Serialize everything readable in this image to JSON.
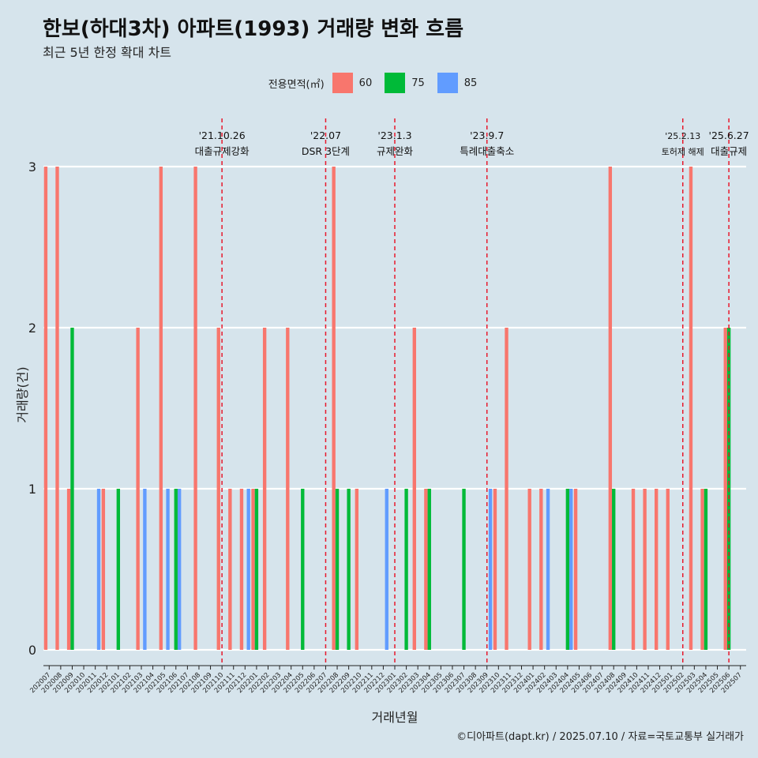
{
  "title": "한보(하대3차) 아파트(1993) 거래량 변화 흐름",
  "subtitle": "최근 5년 한정 확대 차트",
  "caption": "©디아파트(dapt.kr) / 2025.07.10 / 자료=국토교통부 실거래가",
  "legend": {
    "title": "전용면적(㎡)",
    "items": [
      {
        "label": "60",
        "color": "#f8766d"
      },
      {
        "label": "75",
        "color": "#00ba38"
      },
      {
        "label": "85",
        "color": "#619cff"
      }
    ]
  },
  "chart_data": {
    "type": "bar",
    "xlabel": "거래년월",
    "ylabel": "거래량(건)",
    "ylim": [
      0,
      3
    ],
    "yticks": [
      0,
      1,
      2,
      3
    ],
    "grid": true,
    "categories": [
      "202007",
      "202008",
      "202009",
      "202010",
      "202011",
      "202012",
      "202101",
      "202102",
      "202103",
      "202104",
      "202105",
      "202106",
      "202107",
      "202108",
      "202109",
      "202110",
      "202111",
      "202112",
      "202201",
      "202202",
      "202203",
      "202204",
      "202205",
      "202206",
      "202207",
      "202208",
      "202209",
      "202210",
      "202211",
      "202212",
      "202301",
      "202302",
      "202303",
      "202304",
      "202305",
      "202306",
      "202307",
      "202308",
      "202309",
      "202310",
      "202311",
      "202312",
      "202401",
      "202402",
      "202403",
      "202404",
      "202405",
      "202406",
      "202407",
      "202408",
      "202409",
      "202410",
      "202411",
      "202412",
      "202501",
      "202502",
      "202503",
      "202504",
      "202505",
      "202506",
      "202507"
    ],
    "series": [
      {
        "name": "60",
        "color": "#f8766d",
        "values": [
          3,
          3,
          1,
          0,
          0,
          1,
          0,
          0,
          2,
          0,
          3,
          0,
          0,
          3,
          0,
          2,
          1,
          1,
          1,
          2,
          0,
          2,
          0,
          0,
          0,
          3,
          0,
          1,
          0,
          0,
          0,
          0,
          2,
          1,
          0,
          0,
          0,
          0,
          0,
          1,
          2,
          0,
          1,
          1,
          0,
          0,
          1,
          0,
          0,
          3,
          0,
          1,
          1,
          1,
          1,
          0,
          3,
          1,
          0,
          2,
          0
        ]
      },
      {
        "name": "75",
        "color": "#00ba38",
        "values": [
          0,
          0,
          2,
          0,
          0,
          0,
          1,
          0,
          0,
          0,
          0,
          1,
          0,
          0,
          0,
          0,
          0,
          0,
          1,
          0,
          0,
          0,
          1,
          0,
          0,
          1,
          1,
          0,
          0,
          0,
          0,
          1,
          0,
          1,
          0,
          0,
          1,
          0,
          0,
          0,
          0,
          0,
          0,
          0,
          0,
          1,
          0,
          0,
          0,
          1,
          0,
          0,
          0,
          0,
          0,
          0,
          0,
          1,
          0,
          2,
          0
        ]
      },
      {
        "name": "85",
        "color": "#619cff",
        "values": [
          0,
          0,
          0,
          0,
          1,
          0,
          0,
          0,
          1,
          0,
          1,
          1,
          0,
          0,
          0,
          0,
          0,
          1,
          0,
          0,
          0,
          0,
          0,
          0,
          0,
          0,
          0,
          0,
          0,
          1,
          0,
          0,
          0,
          0,
          0,
          0,
          0,
          0,
          1,
          0,
          0,
          0,
          0,
          1,
          0,
          1,
          0,
          0,
          0,
          0,
          0,
          0,
          0,
          0,
          0,
          0,
          0,
          0,
          0,
          0,
          0
        ]
      }
    ],
    "annotations": [
      {
        "date": "202110",
        "line1": "'21.10.26",
        "line2": "대출규제강화"
      },
      {
        "date": "202207",
        "line1": "'22.07",
        "line2": "DSR 3단계"
      },
      {
        "date": "202301",
        "line1": "'23.1.3",
        "line2": "규제완화"
      },
      {
        "date": "202309",
        "line1": "'23.9.7",
        "line2": "특례대출축소"
      },
      {
        "date": "202502",
        "line1": "'25.2.13",
        "line2": "토허제 해제"
      },
      {
        "date": "202506",
        "line1": "'25.6.27",
        "line2": "대출규제"
      }
    ]
  }
}
